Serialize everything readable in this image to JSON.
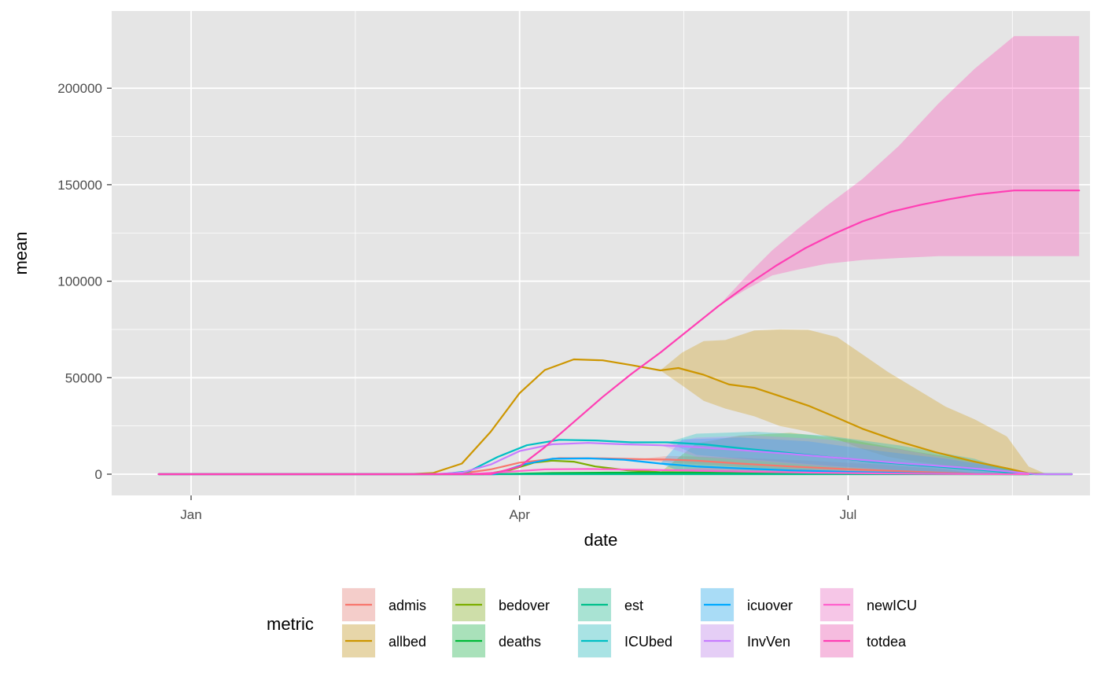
{
  "chart_data": {
    "type": "line",
    "xlabel": "date",
    "ylabel": "mean",
    "x_axis": {
      "scale": "date",
      "ticks": [
        {
          "date": "2020-01-01",
          "label": "Jan"
        },
        {
          "date": "2020-04-01",
          "label": "Apr"
        },
        {
          "date": "2020-07-01",
          "label": "Jul"
        }
      ],
      "range": [
        "2019-12-10",
        "2020-09-06"
      ]
    },
    "y_axis": {
      "ticks": [
        0,
        50000,
        100000,
        150000,
        200000
      ],
      "tick_labels": [
        "0",
        "50000",
        "100000",
        "150000",
        "200000"
      ],
      "range": [
        -11000,
        240000
      ]
    },
    "grid": true,
    "background": "#e5e5e5",
    "legend": {
      "title": "metric",
      "position": "bottom"
    },
    "series": [
      {
        "name": "admis",
        "color": "#F8766D",
        "points": [
          [
            "2019-12-23",
            0
          ],
          [
            "2020-03-08",
            0
          ],
          [
            "2020-03-16",
            400
          ],
          [
            "2020-03-24",
            2500
          ],
          [
            "2020-04-01",
            6000
          ],
          [
            "2020-04-12",
            8300
          ],
          [
            "2020-04-24",
            8200
          ],
          [
            "2020-05-04",
            7800
          ],
          [
            "2020-05-12",
            7600
          ],
          [
            "2020-05-20",
            7000
          ],
          [
            "2020-06-01",
            5500
          ],
          [
            "2020-06-15",
            4000
          ],
          [
            "2020-07-01",
            2600
          ],
          [
            "2020-07-15",
            1600
          ],
          [
            "2020-07-25",
            900
          ],
          [
            "2020-08-05",
            200
          ],
          [
            "2020-08-20",
            0
          ]
        ],
        "band": [
          [
            "2020-05-04",
            7800,
            7800
          ],
          [
            "2020-05-12",
            6000,
            9500
          ],
          [
            "2020-06-01",
            3800,
            8500
          ],
          [
            "2020-06-20",
            2000,
            7000
          ],
          [
            "2020-07-10",
            1000,
            5000
          ],
          [
            "2020-07-28",
            400,
            2500
          ],
          [
            "2020-08-05",
            0,
            500
          ],
          [
            "2020-08-20",
            0,
            0
          ]
        ]
      },
      {
        "name": "allbed",
        "color": "#CD9600",
        "points": [
          [
            "2019-12-23",
            0
          ],
          [
            "2020-03-01",
            0
          ],
          [
            "2020-03-08",
            600
          ],
          [
            "2020-03-16",
            5500
          ],
          [
            "2020-03-24",
            22000
          ],
          [
            "2020-04-01",
            42000
          ],
          [
            "2020-04-08",
            54000
          ],
          [
            "2020-04-16",
            59500
          ],
          [
            "2020-04-24",
            59000
          ],
          [
            "2020-05-02",
            56500
          ],
          [
            "2020-05-10",
            53800
          ],
          [
            "2020-05-15",
            55000
          ],
          [
            "2020-05-22",
            51500
          ],
          [
            "2020-05-29",
            46500
          ],
          [
            "2020-06-05",
            44800
          ],
          [
            "2020-06-12",
            40500
          ],
          [
            "2020-06-20",
            35500
          ],
          [
            "2020-06-27",
            30000
          ],
          [
            "2020-07-05",
            23500
          ],
          [
            "2020-07-15",
            17000
          ],
          [
            "2020-07-25",
            11500
          ],
          [
            "2020-08-05",
            6500
          ],
          [
            "2020-08-14",
            3000
          ],
          [
            "2020-08-20",
            500
          ],
          [
            "2020-08-25",
            0
          ],
          [
            "2020-09-01",
            0
          ]
        ],
        "band": [
          [
            "2020-05-10",
            53800,
            53800
          ],
          [
            "2020-05-16",
            46000,
            63000
          ],
          [
            "2020-05-22",
            38000,
            69000
          ],
          [
            "2020-05-28",
            34000,
            69500
          ],
          [
            "2020-06-05",
            30000,
            74500
          ],
          [
            "2020-06-12",
            25000,
            75000
          ],
          [
            "2020-06-20",
            22000,
            74800
          ],
          [
            "2020-06-28",
            18000,
            71000
          ],
          [
            "2020-07-05",
            13000,
            62000
          ],
          [
            "2020-07-12",
            9000,
            53000
          ],
          [
            "2020-07-20",
            6500,
            44000
          ],
          [
            "2020-07-28",
            4500,
            35000
          ],
          [
            "2020-08-05",
            3000,
            28500
          ],
          [
            "2020-08-14",
            1500,
            19500
          ],
          [
            "2020-08-20",
            0,
            4000
          ],
          [
            "2020-08-25",
            0,
            0
          ],
          [
            "2020-09-01",
            0,
            0
          ]
        ]
      },
      {
        "name": "bedover",
        "color": "#7CAE00",
        "points": [
          [
            "2019-12-23",
            0
          ],
          [
            "2020-03-22",
            0
          ],
          [
            "2020-03-29",
            2000
          ],
          [
            "2020-04-05",
            6000
          ],
          [
            "2020-04-10",
            7000
          ],
          [
            "2020-04-16",
            6500
          ],
          [
            "2020-04-22",
            4000
          ],
          [
            "2020-05-01",
            2000
          ],
          [
            "2020-05-10",
            1000
          ],
          [
            "2020-05-20",
            800
          ],
          [
            "2020-06-01",
            400
          ],
          [
            "2020-06-20",
            200
          ],
          [
            "2020-07-10",
            100
          ],
          [
            "2020-08-20",
            0
          ]
        ],
        "band": [
          [
            "2020-05-10",
            1000,
            1000
          ],
          [
            "2020-05-20",
            0,
            16000
          ],
          [
            "2020-06-01",
            0,
            20000
          ],
          [
            "2020-06-15",
            0,
            21500
          ],
          [
            "2020-07-01",
            0,
            18000
          ],
          [
            "2020-07-20",
            0,
            11500
          ],
          [
            "2020-08-05",
            0,
            7000
          ],
          [
            "2020-08-20",
            0,
            500
          ],
          [
            "2020-08-25",
            0,
            0
          ]
        ]
      },
      {
        "name": "deaths",
        "color": "#00BA38",
        "points": [
          [
            "2019-12-23",
            0
          ],
          [
            "2020-03-25",
            0
          ],
          [
            "2020-04-10",
            600
          ],
          [
            "2020-04-25",
            800
          ],
          [
            "2020-05-10",
            800
          ],
          [
            "2020-05-25",
            700
          ],
          [
            "2020-06-10",
            400
          ],
          [
            "2020-07-01",
            150
          ],
          [
            "2020-07-20",
            50
          ],
          [
            "2020-08-20",
            0
          ]
        ],
        "band": [
          [
            "2020-05-10",
            800,
            800
          ],
          [
            "2020-05-25",
            200,
            2000
          ],
          [
            "2020-06-20",
            0,
            1500
          ],
          [
            "2020-07-20",
            0,
            600
          ],
          [
            "2020-08-20",
            0,
            0
          ]
        ]
      },
      {
        "name": "est",
        "color": "#00C08B",
        "points": [
          [
            "2019-12-23",
            0
          ],
          [
            "2020-09-01",
            0
          ]
        ],
        "band": []
      },
      {
        "name": "ICUbed",
        "color": "#00BFC4",
        "points": [
          [
            "2019-12-23",
            0
          ],
          [
            "2020-03-10",
            0
          ],
          [
            "2020-03-18",
            1500
          ],
          [
            "2020-03-26",
            9000
          ],
          [
            "2020-04-03",
            15000
          ],
          [
            "2020-04-12",
            17800
          ],
          [
            "2020-04-22",
            17500
          ],
          [
            "2020-05-02",
            16500
          ],
          [
            "2020-05-12",
            16500
          ],
          [
            "2020-05-22",
            15500
          ],
          [
            "2020-06-01",
            13500
          ],
          [
            "2020-06-12",
            11500
          ],
          [
            "2020-06-25",
            9000
          ],
          [
            "2020-07-08",
            6500
          ],
          [
            "2020-07-22",
            4500
          ],
          [
            "2020-08-05",
            2500
          ],
          [
            "2020-08-14",
            1000
          ],
          [
            "2020-08-22",
            0
          ],
          [
            "2020-09-01",
            0
          ]
        ],
        "band": [
          [
            "2020-05-12",
            16500,
            16500
          ],
          [
            "2020-05-20",
            10000,
            21000
          ],
          [
            "2020-06-05",
            7500,
            22000
          ],
          [
            "2020-06-25",
            4500,
            20000
          ],
          [
            "2020-07-15",
            2000,
            15000
          ],
          [
            "2020-08-05",
            500,
            8000
          ],
          [
            "2020-08-14",
            0,
            2500
          ],
          [
            "2020-08-22",
            0,
            0
          ]
        ]
      },
      {
        "name": "icuover",
        "color": "#00A9FF",
        "points": [
          [
            "2019-12-23",
            0
          ],
          [
            "2020-03-25",
            0
          ],
          [
            "2020-04-02",
            5000
          ],
          [
            "2020-04-10",
            8000
          ],
          [
            "2020-04-20",
            8200
          ],
          [
            "2020-04-30",
            7500
          ],
          [
            "2020-05-10",
            5500
          ],
          [
            "2020-05-20",
            4000
          ],
          [
            "2020-06-01",
            3000
          ],
          [
            "2020-06-15",
            2000
          ],
          [
            "2020-07-01",
            1200
          ],
          [
            "2020-07-20",
            500
          ],
          [
            "2020-08-05",
            100
          ],
          [
            "2020-08-20",
            0
          ]
        ],
        "band": [
          [
            "2020-05-10",
            5500,
            5500
          ],
          [
            "2020-05-16",
            1000,
            18000
          ],
          [
            "2020-06-01",
            1000,
            19000
          ],
          [
            "2020-06-20",
            500,
            17000
          ],
          [
            "2020-07-10",
            0,
            12000
          ],
          [
            "2020-07-28",
            0,
            8000
          ],
          [
            "2020-08-14",
            0,
            3000
          ],
          [
            "2020-08-22",
            0,
            0
          ]
        ]
      },
      {
        "name": "InvVen",
        "color": "#C77CFF",
        "points": [
          [
            "2019-12-23",
            0
          ],
          [
            "2020-03-08",
            0
          ],
          [
            "2020-03-16",
            800
          ],
          [
            "2020-03-24",
            5000
          ],
          [
            "2020-04-01",
            12000
          ],
          [
            "2020-04-10",
            15500
          ],
          [
            "2020-04-20",
            16200
          ],
          [
            "2020-04-30",
            15500
          ],
          [
            "2020-05-10",
            15000
          ],
          [
            "2020-05-20",
            14000
          ],
          [
            "2020-06-01",
            12500
          ],
          [
            "2020-06-15",
            10500
          ],
          [
            "2020-07-01",
            8000
          ],
          [
            "2020-07-15",
            5800
          ],
          [
            "2020-08-01",
            3500
          ],
          [
            "2020-08-14",
            1500
          ],
          [
            "2020-08-22",
            0
          ],
          [
            "2020-09-01",
            0
          ]
        ],
        "band": [
          [
            "2020-05-10",
            15000,
            15000
          ],
          [
            "2020-05-20",
            9000,
            19000
          ],
          [
            "2020-06-05",
            7000,
            20000
          ],
          [
            "2020-06-25",
            4000,
            18000
          ],
          [
            "2020-07-15",
            2000,
            13000
          ],
          [
            "2020-08-05",
            300,
            6000
          ],
          [
            "2020-08-14",
            0,
            2000
          ],
          [
            "2020-08-22",
            0,
            0
          ]
        ]
      },
      {
        "name": "newICU",
        "color": "#FF61CC",
        "points": [
          [
            "2019-12-23",
            0
          ],
          [
            "2020-03-18",
            0
          ],
          [
            "2020-03-28",
            1200
          ],
          [
            "2020-04-08",
            2500
          ],
          [
            "2020-04-20",
            2700
          ],
          [
            "2020-05-01",
            2400
          ],
          [
            "2020-05-15",
            2000
          ],
          [
            "2020-06-01",
            1400
          ],
          [
            "2020-06-20",
            800
          ],
          [
            "2020-07-10",
            400
          ],
          [
            "2020-08-01",
            100
          ],
          [
            "2020-08-20",
            0
          ]
        ],
        "band": [
          [
            "2020-05-10",
            2200,
            2200
          ],
          [
            "2020-05-25",
            800,
            3500
          ],
          [
            "2020-06-20",
            200,
            2500
          ],
          [
            "2020-07-20",
            0,
            1200
          ],
          [
            "2020-08-20",
            0,
            0
          ]
        ]
      },
      {
        "name": "totdea",
        "color": "#FF3FB4",
        "points": [
          [
            "2019-12-23",
            0
          ],
          [
            "2020-03-24",
            0
          ],
          [
            "2020-04-01",
            4000
          ],
          [
            "2020-04-08",
            14000
          ],
          [
            "2020-04-16",
            27000
          ],
          [
            "2020-04-24",
            40000
          ],
          [
            "2020-05-02",
            52000
          ],
          [
            "2020-05-10",
            63000
          ],
          [
            "2020-05-18",
            75000
          ],
          [
            "2020-05-26",
            87000
          ],
          [
            "2020-06-03",
            98000
          ],
          [
            "2020-06-11",
            108000
          ],
          [
            "2020-06-19",
            117000
          ],
          [
            "2020-06-27",
            124500
          ],
          [
            "2020-07-05",
            131000
          ],
          [
            "2020-07-13",
            136000
          ],
          [
            "2020-07-21",
            139500
          ],
          [
            "2020-07-29",
            142500
          ],
          [
            "2020-08-06",
            145000
          ],
          [
            "2020-08-16",
            147000
          ],
          [
            "2020-09-03",
            147000
          ]
        ],
        "band": [
          [
            "2020-05-26",
            87000,
            87000
          ],
          [
            "2020-06-03",
            96000,
            103000
          ],
          [
            "2020-06-10",
            103000,
            116000
          ],
          [
            "2020-06-17",
            106000,
            127000
          ],
          [
            "2020-06-25",
            109000,
            139000
          ],
          [
            "2020-07-05",
            111000,
            153000
          ],
          [
            "2020-07-15",
            112000,
            170000
          ],
          [
            "2020-07-26",
            113000,
            192000
          ],
          [
            "2020-08-05",
            113000,
            210000
          ],
          [
            "2020-08-16",
            113000,
            227000
          ],
          [
            "2020-09-03",
            113000,
            227000
          ]
        ]
      }
    ]
  }
}
